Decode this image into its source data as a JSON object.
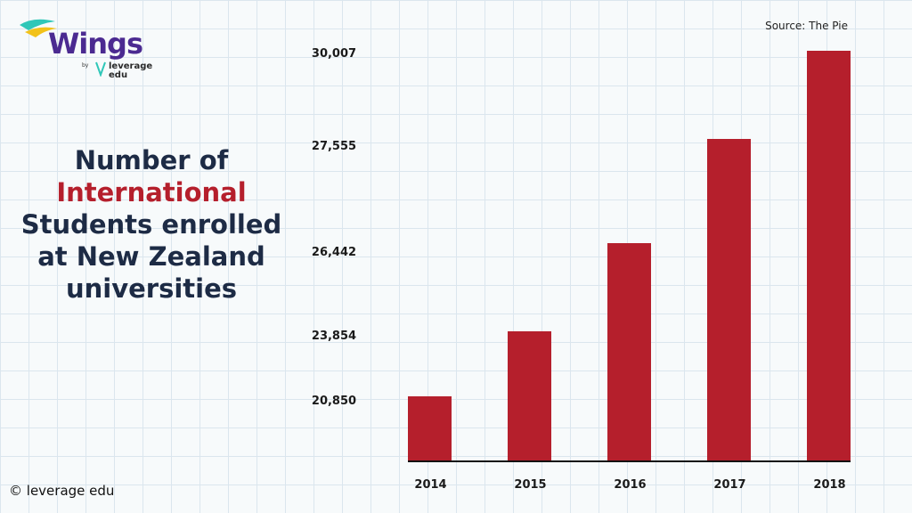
{
  "brand": {
    "name": "Wings",
    "by": "by",
    "sub": "leverage edu"
  },
  "title": {
    "line1": "Number of",
    "line2": "International",
    "line3": "Students enrolled",
    "line4": "at New Zealand",
    "line5": "universities"
  },
  "source": "Source: The Pie",
  "copyright": "leverage edu",
  "colors": {
    "bar": "#b51f2c",
    "title_dark": "#1d2b45",
    "title_highlight": "#b51f2c",
    "brand": "#4b2a91"
  },
  "chart_data": {
    "type": "bar",
    "categories": [
      "2014",
      "2015",
      "2016",
      "2017",
      "2018"
    ],
    "values": [
      20850,
      23854,
      26442,
      27555,
      30007
    ],
    "tick_labels": [
      "20,850",
      "23,854",
      "26,442",
      "27,555",
      "30,007"
    ],
    "title": "",
    "xlabel": "",
    "ylabel": "",
    "grid": false,
    "legend": "none"
  }
}
